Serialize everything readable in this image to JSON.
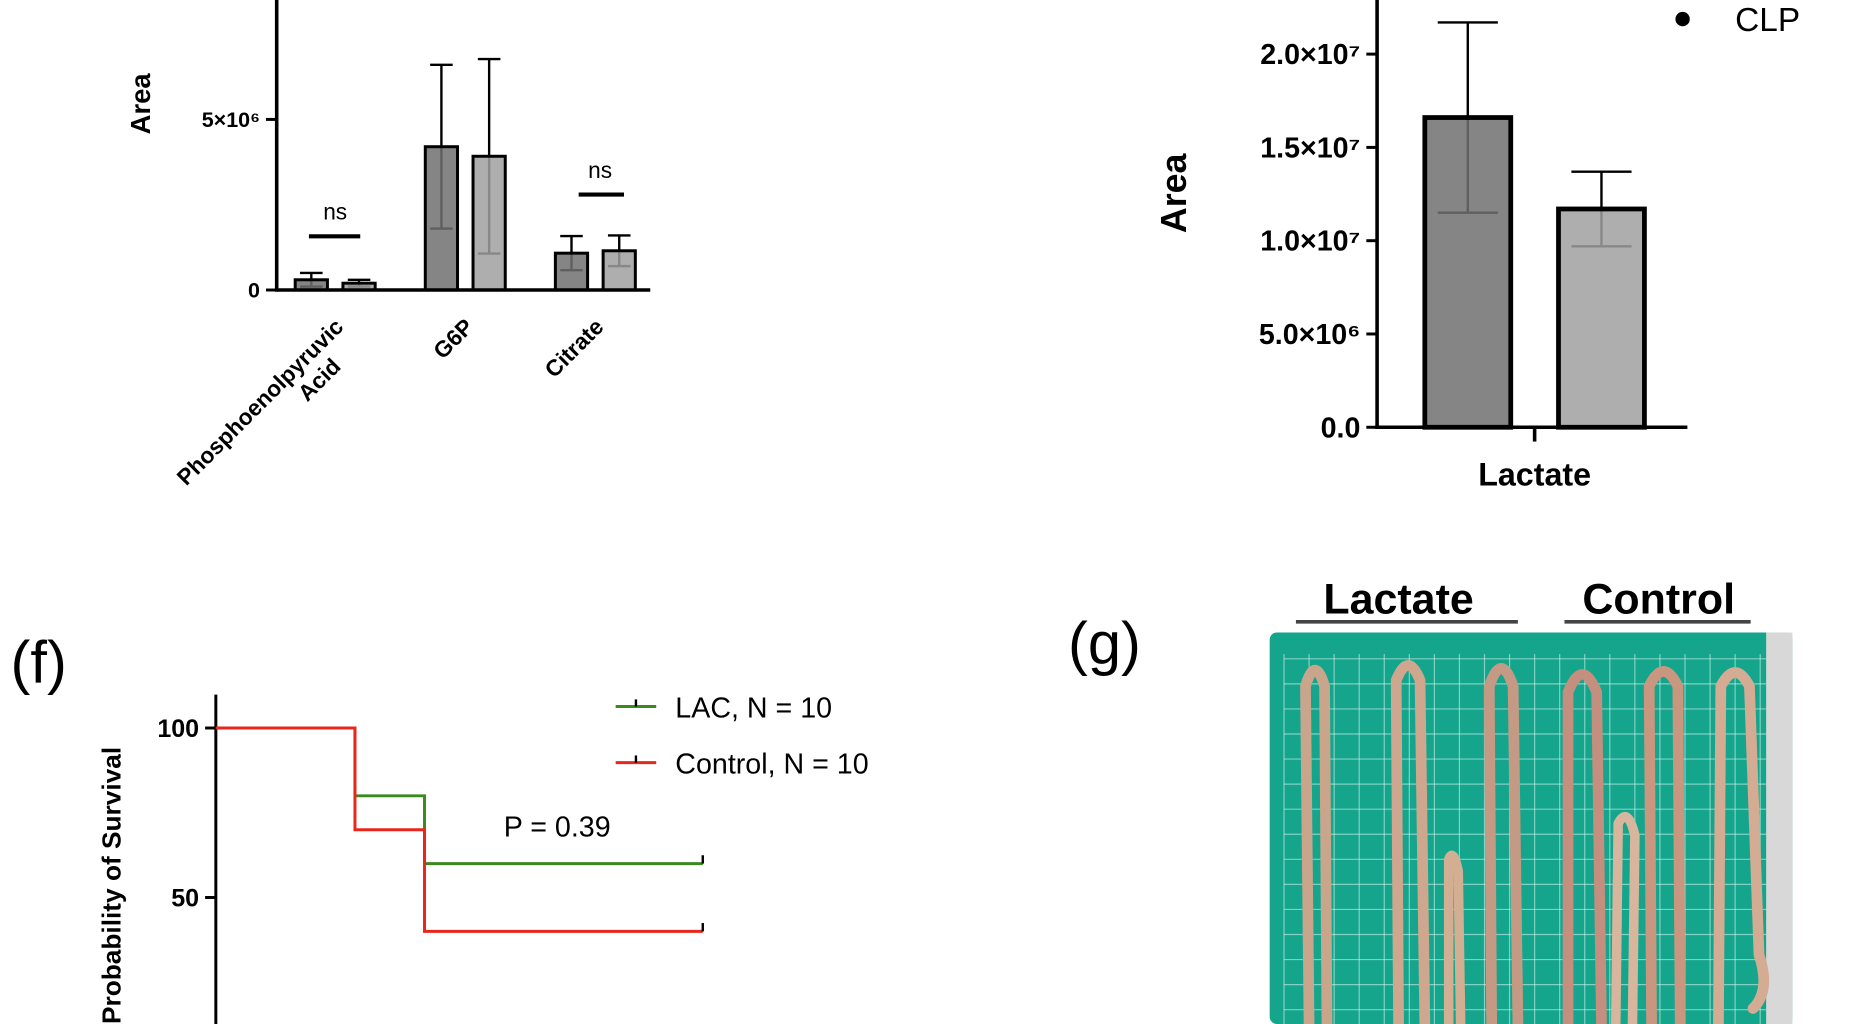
{
  "chart_data": [
    {
      "type": "bar",
      "ylabel": "Area",
      "categories": [
        "Phosphoenolpyruvic Acid",
        "G6P",
        "Citrate"
      ],
      "series": [
        {
          "color": "#707070",
          "values": [
            300000,
            4200000,
            1080000
          ],
          "errors": [
            200000,
            2400000,
            500000
          ]
        },
        {
          "color": "#a0a0a0",
          "values": [
            200000,
            3920000,
            1150000
          ],
          "errors": [
            100000,
            2850000,
            450000
          ]
        }
      ],
      "ylim": [
        0,
        8500000
      ],
      "yticks": [
        0,
        {
          "value": 5000000,
          "label": "5×10⁶"
        }
      ],
      "annotations": [
        "ns",
        "ns"
      ]
    },
    {
      "type": "bar",
      "ylabel": "Area",
      "categories": [
        "Lactate"
      ],
      "series": [
        {
          "color": "#707070",
          "values": [
            16600000
          ],
          "errors": [
            5100000
          ]
        },
        {
          "name": "CLP",
          "color": "#a0a0a0",
          "values": [
            11700000
          ],
          "errors": [
            2000000
          ]
        }
      ],
      "ylim": [
        0,
        22900000
      ],
      "yticks": [
        {
          "value": 0,
          "label": "0.0"
        },
        {
          "value": 5000000,
          "label": "5.0×10⁶"
        },
        {
          "value": 10000000,
          "label": "1.0×10⁷"
        },
        {
          "value": 15000000,
          "label": "1.5×10⁷"
        },
        {
          "value": 20000000,
          "label": "2.0×10⁷"
        }
      ]
    },
    {
      "type": "line",
      "ylabel": "Probability of Survival",
      "series": [
        {
          "name": "LAC, N = 10",
          "color": "#3a8a1e",
          "x": [
            0,
            2,
            2,
            3,
            3,
            7
          ],
          "values": [
            100,
            100,
            80,
            80,
            60,
            60
          ]
        },
        {
          "name": "Control, N = 10",
          "color": "#e8261c",
          "x": [
            0,
            2,
            2,
            3,
            3,
            7
          ],
          "values": [
            100,
            100,
            70,
            70,
            40,
            40
          ]
        }
      ],
      "xlim": [
        0,
        7
      ],
      "ylim": [
        0,
        110
      ],
      "yticks": [
        50,
        100
      ],
      "annotations": [
        "P = 0.39"
      ]
    }
  ],
  "panel_labels": [
    "(f)",
    "(g)"
  ],
  "photo": {
    "labels": [
      "Lactate",
      "Control"
    ]
  }
}
